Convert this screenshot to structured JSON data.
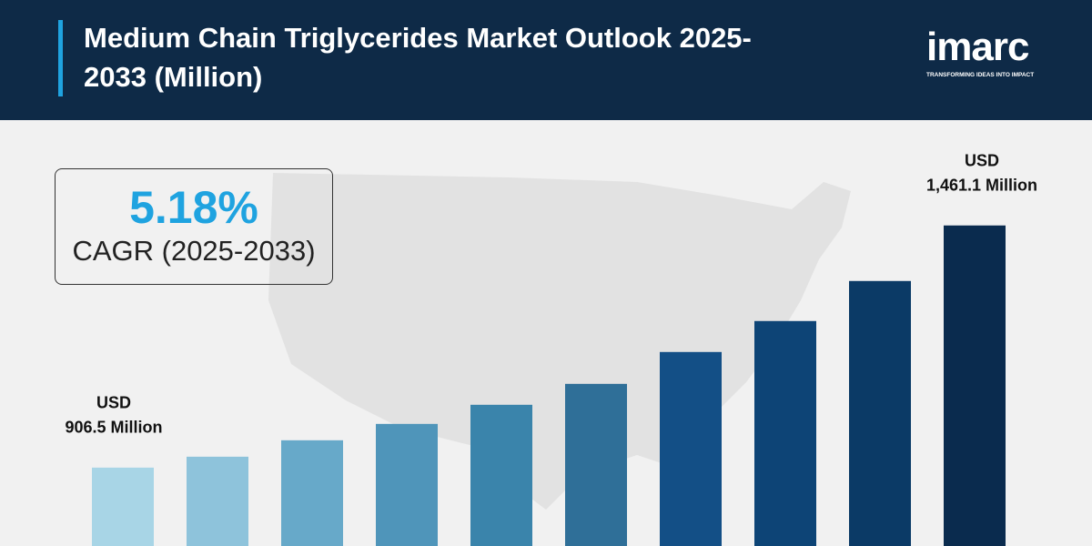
{
  "chart_data": {
    "type": "bar",
    "title": "Medium Chain Triglycerides Market Outlook 2025-2033 (Million)",
    "logo": {
      "text": "imarc",
      "tagline": "TRANSFORMING IDEAS INTO IMPACT"
    },
    "callout": {
      "value": "5.18%",
      "label": "CAGR (2025-2033)"
    },
    "categories": [
      null,
      null,
      null,
      null,
      null,
      null,
      null,
      null,
      null,
      null
    ],
    "values": [
      906.5,
      931.5,
      969.1,
      1006.6,
      1050.4,
      1098.3,
      1171.3,
      1242.2,
      1333.9,
      1461.1
    ],
    "value_labels": [
      [
        "USD",
        "906.5 Million"
      ],
      null,
      null,
      null,
      null,
      null,
      null,
      null,
      null,
      [
        "USD",
        "1,461.1 Million"
      ]
    ],
    "colors": [
      "#a8d5e6",
      "#8ec3db",
      "#67a9c9",
      "#4f95ba",
      "#3a84ab",
      "#2f6f98",
      "#134f86",
      "#0d4476",
      "#0b3a66",
      "#0a2b4e"
    ],
    "ylim": [
      727,
      1669
    ]
  }
}
